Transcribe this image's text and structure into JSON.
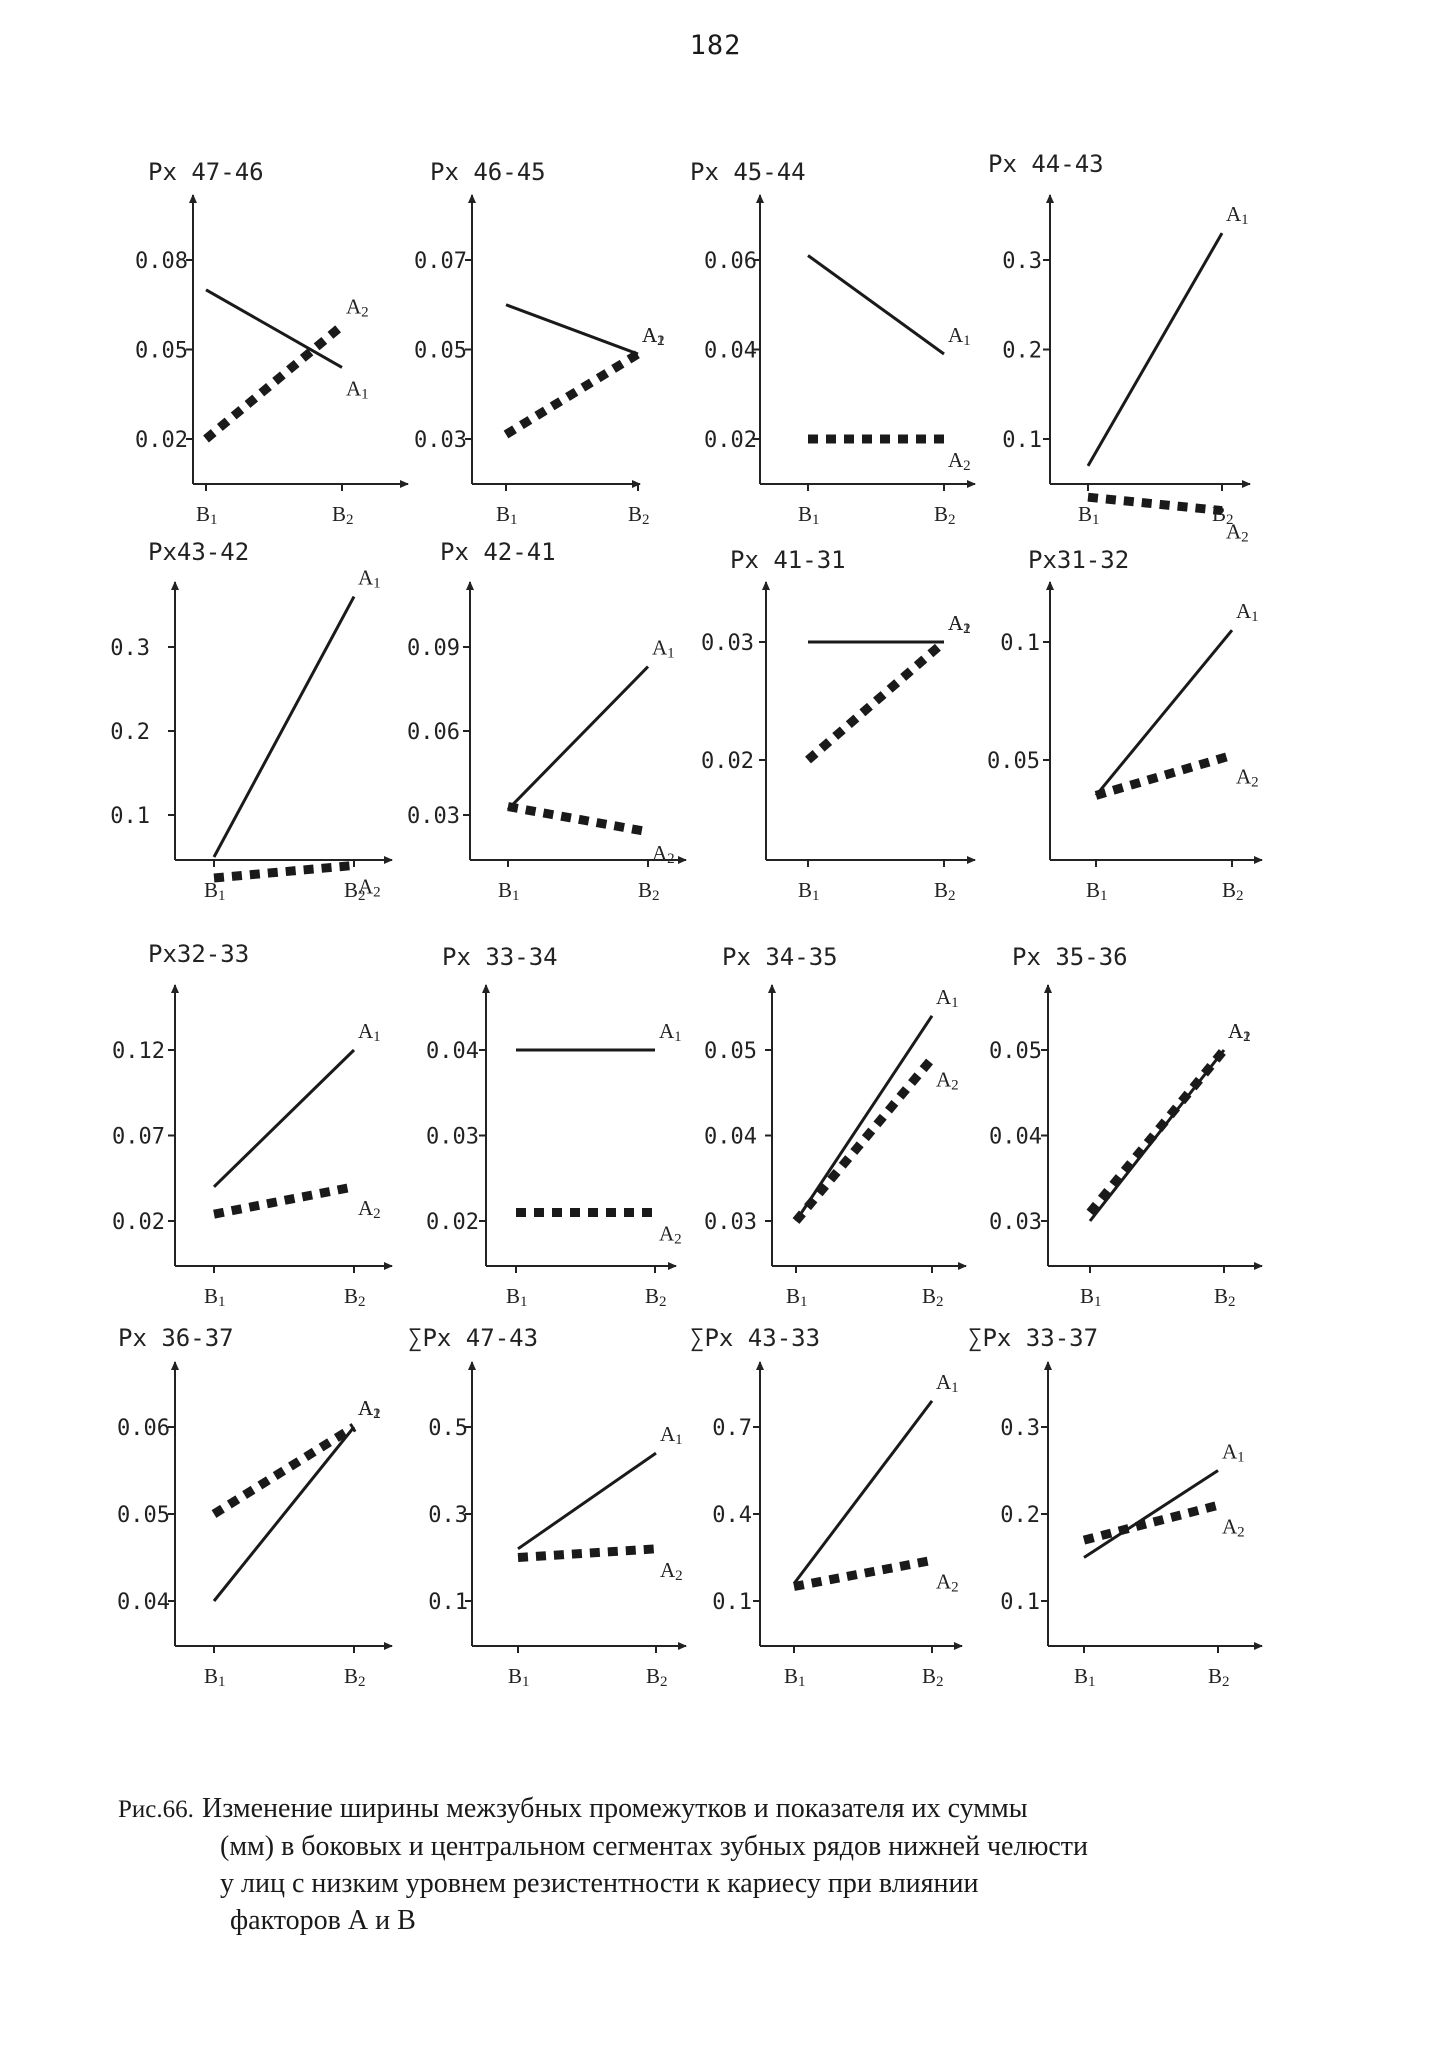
{
  "page_number": "182",
  "caption": {
    "ref": "Рис.66.",
    "lines": [
      "Изменение ширины межзубных промежутков и показателя их суммы",
      "(мм) в боковых и центральном сегментах зубных рядов нижней челюсти",
      "у лиц с низким уровнем резистентности к кариесу при влиянии",
      "факторов А и В"
    ]
  },
  "legend_style": {
    "A1": "solid line",
    "A2": "dashed line"
  },
  "colors": {
    "ink": "#1a1a1a",
    "paper": "#ffffff"
  },
  "chart_data": [
    {
      "type": "line",
      "title": "Px 47-46",
      "categories": [
        "B1",
        "B2"
      ],
      "yticks": [
        "0.08",
        "0.05",
        "0.02"
      ],
      "ytick_values": [
        0.08,
        0.05,
        0.02
      ],
      "series": [
        {
          "name": "A1",
          "values": [
            0.07,
            0.044
          ]
        },
        {
          "name": "A2",
          "values": [
            0.02,
            0.058
          ]
        }
      ]
    },
    {
      "type": "line",
      "title": "Px 46-45",
      "categories": [
        "B1",
        "B2"
      ],
      "yticks": [
        "0.07",
        "0.05",
        "0.03"
      ],
      "ytick_values": [
        0.07,
        0.05,
        0.03
      ],
      "series": [
        {
          "name": "A1",
          "values": [
            0.06,
            0.049
          ]
        },
        {
          "name": "A2",
          "values": [
            0.031,
            0.049
          ]
        }
      ]
    },
    {
      "type": "line",
      "title": "Px 45-44",
      "categories": [
        "B1",
        "B2"
      ],
      "yticks": [
        "0.06",
        "0.04",
        "0.02"
      ],
      "ytick_values": [
        0.06,
        0.04,
        0.02
      ],
      "series": [
        {
          "name": "A1",
          "values": [
            0.061,
            0.039
          ]
        },
        {
          "name": "A2",
          "values": [
            0.02,
            0.02
          ]
        }
      ]
    },
    {
      "type": "line",
      "title": "Px 44-43",
      "categories": [
        "B1",
        "B2"
      ],
      "yticks": [
        "0.3",
        "0.2",
        "0.1"
      ],
      "ytick_values": [
        0.3,
        0.2,
        0.1
      ],
      "series": [
        {
          "name": "A1",
          "values": [
            0.07,
            0.33
          ]
        },
        {
          "name": "A2",
          "values": [
            0.035,
            0.02
          ]
        }
      ]
    },
    {
      "type": "line",
      "title": "Px43-42",
      "categories": [
        "B1",
        "B2"
      ],
      "yticks": [
        "0.3",
        "0.2",
        "0.1"
      ],
      "ytick_values": [
        0.3,
        0.2,
        0.1
      ],
      "series": [
        {
          "name": "A1",
          "values": [
            0.05,
            0.36
          ]
        },
        {
          "name": "A2",
          "values": [
            0.025,
            0.04
          ]
        }
      ]
    },
    {
      "type": "line",
      "title": "Px 42-41",
      "categories": [
        "B1",
        "B2"
      ],
      "yticks": [
        "0.09",
        "0.06",
        "0.03"
      ],
      "ytick_values": [
        0.09,
        0.06,
        0.03
      ],
      "series": [
        {
          "name": "A1",
          "values": [
            0.032,
            0.083
          ]
        },
        {
          "name": "A2",
          "values": [
            0.033,
            0.024
          ]
        }
      ]
    },
    {
      "type": "line",
      "title": "Px 41-31",
      "categories": [
        "B1",
        "B2"
      ],
      "yticks": [
        "0.03",
        "0.02"
      ],
      "ytick_values": [
        0.03,
        0.02
      ],
      "series": [
        {
          "name": "A1",
          "values": [
            0.03,
            0.03
          ]
        },
        {
          "name": "A2",
          "values": [
            0.02,
            0.03
          ]
        }
      ]
    },
    {
      "type": "line",
      "title": "Px31-32",
      "categories": [
        "B1",
        "B2"
      ],
      "yticks": [
        "0.1",
        "0.05"
      ],
      "ytick_values": [
        0.1,
        0.05
      ],
      "series": [
        {
          "name": "A1",
          "values": [
            0.035,
            0.105
          ]
        },
        {
          "name": "A2",
          "values": [
            0.035,
            0.052
          ]
        }
      ]
    },
    {
      "type": "line",
      "title": "Px32-33",
      "categories": [
        "B1",
        "B2"
      ],
      "yticks": [
        "0.12",
        "0.07",
        "0.02"
      ],
      "ytick_values": [
        0.12,
        0.07,
        0.02
      ],
      "series": [
        {
          "name": "A1",
          "values": [
            0.04,
            0.12
          ]
        },
        {
          "name": "A2",
          "values": [
            0.024,
            0.04
          ]
        }
      ]
    },
    {
      "type": "line",
      "title": "Px 33-34",
      "categories": [
        "B1",
        "B2"
      ],
      "yticks": [
        "0.04",
        "0.03",
        "0.02"
      ],
      "ytick_values": [
        0.04,
        0.03,
        0.02
      ],
      "series": [
        {
          "name": "A1",
          "values": [
            0.04,
            0.04
          ]
        },
        {
          "name": "A2",
          "values": [
            0.021,
            0.021
          ]
        }
      ]
    },
    {
      "type": "line",
      "title": "Px 34-35",
      "categories": [
        "B1",
        "B2"
      ],
      "yticks": [
        "0.05",
        "0.04",
        "0.03"
      ],
      "ytick_values": [
        0.05,
        0.04,
        0.03
      ],
      "series": [
        {
          "name": "A1",
          "values": [
            0.03,
            0.054
          ]
        },
        {
          "name": "A2",
          "values": [
            0.03,
            0.049
          ]
        }
      ]
    },
    {
      "type": "line",
      "title": "Px 35-36",
      "categories": [
        "B1",
        "B2"
      ],
      "yticks": [
        "0.05",
        "0.04",
        "0.03"
      ],
      "ytick_values": [
        0.05,
        0.04,
        0.03
      ],
      "series": [
        {
          "name": "A1",
          "values": [
            0.03,
            0.05
          ]
        },
        {
          "name": "A2",
          "values": [
            0.031,
            0.05
          ]
        }
      ]
    },
    {
      "type": "line",
      "title": "Px 36-37",
      "categories": [
        "B1",
        "B2"
      ],
      "yticks": [
        "0.06",
        "0.05",
        "0.04"
      ],
      "ytick_values": [
        0.06,
        0.05,
        0.04
      ],
      "series": [
        {
          "name": "A1",
          "values": [
            0.04,
            0.06
          ]
        },
        {
          "name": "A2",
          "values": [
            0.05,
            0.06
          ]
        }
      ]
    },
    {
      "type": "line",
      "title": "∑Px 47-43",
      "categories": [
        "B1",
        "B2"
      ],
      "yticks": [
        "0.5",
        "0.3",
        "0.1"
      ],
      "ytick_values": [
        0.5,
        0.3,
        0.1
      ],
      "series": [
        {
          "name": "A1",
          "values": [
            0.22,
            0.44
          ]
        },
        {
          "name": "A2",
          "values": [
            0.2,
            0.22
          ]
        }
      ]
    },
    {
      "type": "line",
      "title": "∑Px 43-33",
      "categories": [
        "B1",
        "B2"
      ],
      "yticks": [
        "0.7",
        "0.4",
        "0.1"
      ],
      "ytick_values": [
        0.7,
        0.4,
        0.1
      ],
      "series": [
        {
          "name": "A1",
          "values": [
            0.16,
            0.79
          ]
        },
        {
          "name": "A2",
          "values": [
            0.15,
            0.24
          ]
        }
      ]
    },
    {
      "type": "line",
      "title": "∑Px 33-37",
      "categories": [
        "B1",
        "B2"
      ],
      "yticks": [
        "0.3",
        "0.2",
        "0.1"
      ],
      "ytick_values": [
        0.3,
        0.2,
        0.1
      ],
      "series": [
        {
          "name": "A1",
          "values": [
            0.15,
            0.25
          ]
        },
        {
          "name": "A2",
          "values": [
            0.17,
            0.21
          ]
        }
      ]
    }
  ]
}
